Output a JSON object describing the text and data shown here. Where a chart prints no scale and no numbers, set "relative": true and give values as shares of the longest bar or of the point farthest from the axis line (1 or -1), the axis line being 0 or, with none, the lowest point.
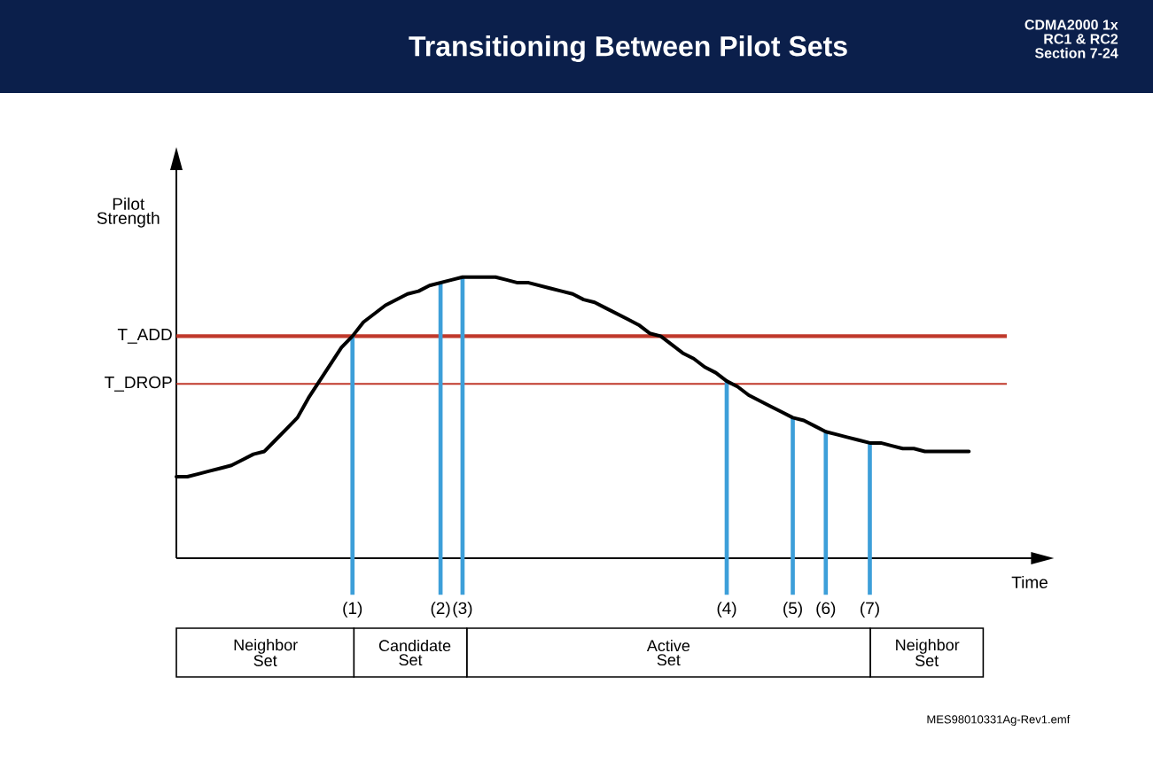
{
  "chart_data": [
    {
      "type": "line",
      "title": "Transitioning Between Pilot Sets",
      "xlabel": "Time",
      "ylabel": "Pilot Strength",
      "relative": true,
      "marker": "none",
      "color": "#000000",
      "grid": "x",
      "categories": [
        null,
        null,
        null,
        null,
        null,
        null,
        null,
        null,
        null,
        null,
        null,
        null,
        null,
        null,
        null,
        null,
        "(1)",
        null,
        null,
        null,
        null,
        null,
        null,
        null,
        "(2)",
        null,
        "(3)",
        null,
        null,
        null,
        null,
        null,
        null,
        null,
        null,
        null,
        null,
        null,
        null,
        null,
        null,
        null,
        null,
        null,
        null,
        null,
        null,
        null,
        null,
        null,
        "(4)",
        null,
        null,
        null,
        null,
        null,
        "(5)",
        null,
        null,
        "(6)",
        null,
        null,
        null,
        "(7)",
        null,
        null,
        null,
        null,
        null,
        null,
        null,
        null,
        null
      ],
      "values": [
        0.29,
        0.29,
        0.3,
        0.31,
        0.32,
        0.33,
        0.35,
        0.37,
        0.38,
        0.42,
        0.46,
        0.5,
        0.57,
        0.63,
        0.69,
        0.75,
        0.79,
        0.84,
        0.87,
        0.9,
        0.92,
        0.94,
        0.95,
        0.97,
        0.98,
        0.99,
        1,
        1,
        1,
        1,
        0.99,
        0.98,
        0.98,
        0.97,
        0.96,
        0.95,
        0.94,
        0.92,
        0.91,
        0.89,
        0.87,
        0.85,
        0.83,
        0.8,
        0.79,
        0.76,
        0.73,
        0.71,
        0.68,
        0.66,
        0.63,
        0.61,
        0.58,
        0.56,
        0.54,
        0.52,
        0.5,
        0.49,
        0.47,
        0.45,
        0.44,
        0.43,
        0.42,
        0.41,
        0.41,
        0.4,
        0.39,
        0.39,
        0.38,
        0.38,
        0.38,
        0.38,
        0.38
      ],
      "ref_lines": [
        {
          "axis": "y",
          "value": 0.79,
          "label": "T_ADD",
          "color": "#c0392b"
        },
        {
          "axis": "y",
          "value": 0.62,
          "label": "T_DROP",
          "color": "#c0392b"
        }
      ],
      "annotations": [
        "CDMA2000 1x RC1 & RC2 Section 7-24",
        "MES98010331Ag-Rev1.emf"
      ]
    },
    {
      "type": "bar",
      "orientation": "horizontal",
      "stacked": true,
      "relative": true,
      "categories": [
        null
      ],
      "series": [
        {
          "name": "Neighbor Set",
          "color": "#ffffff",
          "values": [
            0.22
          ]
        },
        {
          "name": "Candidate Set",
          "color": "#ffffff",
          "values": [
            0.14
          ]
        },
        {
          "name": "Active Set",
          "color": "#ffffff",
          "values": [
            0.5
          ]
        },
        {
          "name": "Neighbor Set",
          "color": "#ffffff",
          "values": [
            0.14
          ]
        }
      ]
    }
  ]
}
